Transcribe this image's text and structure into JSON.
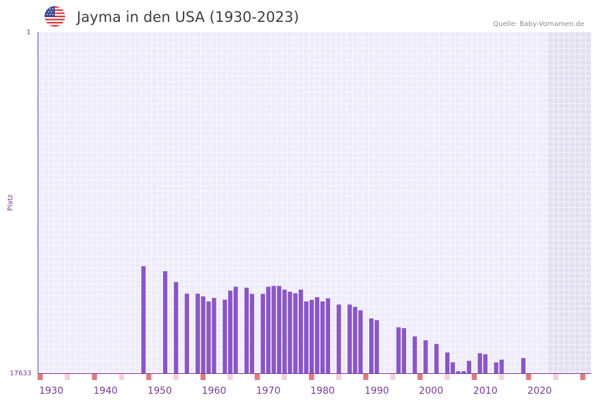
{
  "title": "Jayma in den USA (1930-2023)",
  "source": "Quelle: Baby-Vornamen.de",
  "colors": {
    "bar": "#8a56c6",
    "axis": "#7b3a96",
    "bg": "#eeebfa",
    "future": "#e2dff0",
    "tick_red": "#e07a80",
    "tick_pink": "#f4d2d8",
    "text": "#7b3a96"
  },
  "chart_data": {
    "type": "bar",
    "title": "Jayma in den USA (1930-2023)",
    "xlabel": "",
    "ylabel": "Platz",
    "y_top_label": "1",
    "y_bottom_label": "17633",
    "ylim": [
      17633,
      1
    ],
    "xlim": [
      1928,
      2029
    ],
    "forecast_from": 2022,
    "x_ticks": [
      1930,
      1940,
      1950,
      1960,
      1970,
      1980,
      1990,
      2000,
      2010,
      2020
    ],
    "x_tick_labels": [
      "1930",
      "1940",
      "1950",
      "1960",
      "1970",
      "1980",
      "1990",
      "2000",
      "2010",
      "2020"
    ],
    "series": [
      {
        "name": "Platz",
        "x": [
          1947,
          1951,
          1953,
          1955,
          1957,
          1958,
          1959,
          1960,
          1962,
          1963,
          1964,
          1966,
          1967,
          1969,
          1970,
          1971,
          1972,
          1973,
          1974,
          1975,
          1976,
          1977,
          1978,
          1979,
          1980,
          1981,
          1983,
          1985,
          1986,
          1987,
          1989,
          1990,
          1994,
          1995,
          1997,
          1999,
          2001,
          2003,
          2004,
          2005,
          2006,
          2007,
          2009,
          2010,
          2012,
          2013,
          2017
        ],
        "values": [
          12100,
          12360,
          12920,
          13520,
          13520,
          13660,
          13920,
          13740,
          13830,
          13360,
          13160,
          13210,
          13530,
          13530,
          13160,
          13120,
          13120,
          13310,
          13420,
          13500,
          13310,
          13920,
          13840,
          13700,
          13920,
          13760,
          14080,
          14080,
          14200,
          14380,
          14800,
          14890,
          15260,
          15300,
          15730,
          15930,
          16120,
          16560,
          17070,
          17530,
          17530,
          16990,
          16600,
          16650,
          17070,
          16930,
          16850
        ]
      }
    ]
  }
}
